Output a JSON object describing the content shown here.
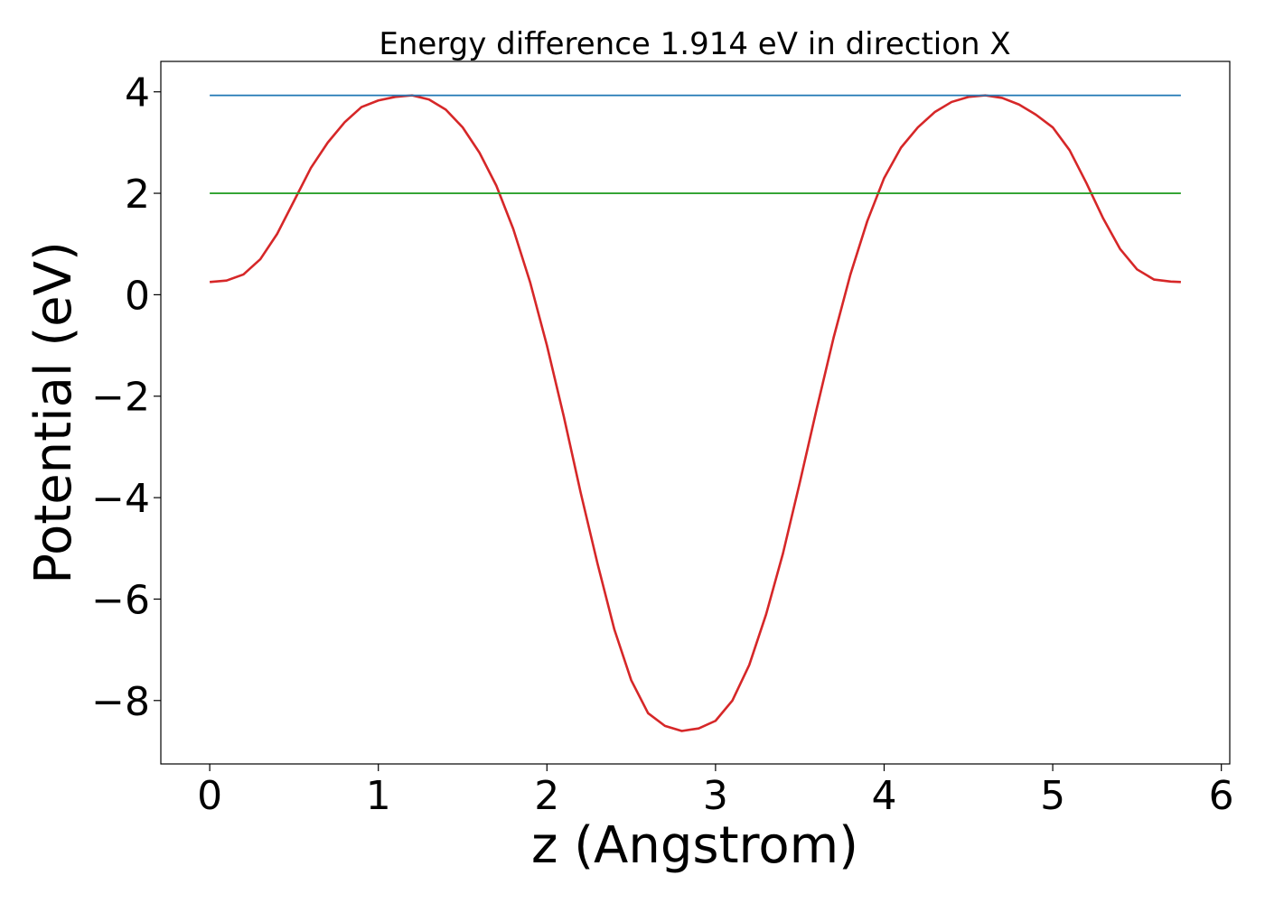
{
  "chart_data": {
    "type": "line",
    "title": "Energy difference 1.914 eV in direction X",
    "xlabel": "z (Angstrom)",
    "ylabel": "Potential (eV)",
    "xlim": [
      -0.29,
      6.05
    ],
    "ylim": [
      -9.25,
      4.6
    ],
    "xticks": [
      0,
      1,
      2,
      3,
      4,
      5,
      6
    ],
    "xtick_labels": [
      "0",
      "1",
      "2",
      "3",
      "4",
      "5",
      "6"
    ],
    "yticks": [
      4,
      2,
      0,
      -2,
      -4,
      -6,
      -8
    ],
    "ytick_labels": [
      "4",
      "2",
      "0",
      "−2",
      "−4",
      "−6",
      "−8"
    ],
    "grid": false,
    "colors": {
      "potential": "#d62728",
      "max_level": "#1f77b4",
      "mid_level": "#2ca02c"
    },
    "series": [
      {
        "id": "potential",
        "x": [
          0.0,
          0.1,
          0.2,
          0.3,
          0.4,
          0.5,
          0.6,
          0.7,
          0.8,
          0.9,
          1.0,
          1.1,
          1.2,
          1.3,
          1.4,
          1.5,
          1.6,
          1.7,
          1.8,
          1.9,
          2.0,
          2.1,
          2.2,
          2.3,
          2.4,
          2.5,
          2.6,
          2.7,
          2.8,
          2.9,
          3.0,
          3.1,
          3.2,
          3.3,
          3.4,
          3.5,
          3.6,
          3.7,
          3.8,
          3.9,
          4.0,
          4.1,
          4.2,
          4.3,
          4.4,
          4.5,
          4.6,
          4.7,
          4.8,
          4.9,
          5.0,
          5.1,
          5.2,
          5.3,
          5.4,
          5.5,
          5.6,
          5.7,
          5.76
        ],
        "y": [
          0.25,
          0.28,
          0.4,
          0.7,
          1.2,
          1.85,
          2.5,
          3.0,
          3.4,
          3.7,
          3.83,
          3.9,
          3.93,
          3.85,
          3.65,
          3.3,
          2.8,
          2.15,
          1.3,
          0.25,
          -1.0,
          -2.4,
          -3.9,
          -5.3,
          -6.6,
          -7.6,
          -8.25,
          -8.5,
          -8.6,
          -8.55,
          -8.4,
          -8.0,
          -7.3,
          -6.3,
          -5.1,
          -3.7,
          -2.25,
          -0.85,
          0.4,
          1.45,
          2.3,
          2.9,
          3.3,
          3.6,
          3.8,
          3.9,
          3.93,
          3.88,
          3.75,
          3.55,
          3.3,
          2.85,
          2.2,
          1.5,
          0.9,
          0.5,
          0.3,
          0.26,
          0.25
        ]
      },
      {
        "id": "max_level",
        "x": [
          0.0,
          5.76
        ],
        "y": [
          3.93,
          3.93
        ]
      },
      {
        "id": "mid_level",
        "x": [
          0.0,
          5.76
        ],
        "y": [
          2.0,
          2.0
        ]
      }
    ]
  }
}
